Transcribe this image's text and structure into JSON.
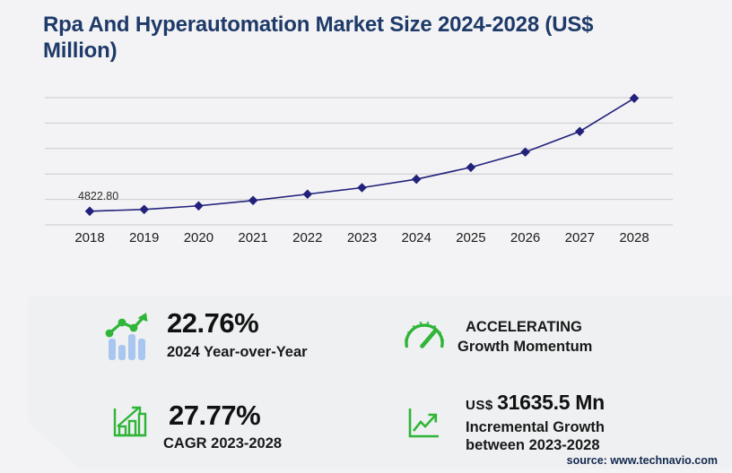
{
  "header": {
    "title": "Rpa And Hyperautomation Market Size 2024-2028 (US$ Million)"
  },
  "chart_data": {
    "type": "line",
    "title": "Rpa And Hyperautomation Market Size 2024-2028 (US$ Million)",
    "x": [
      "2018",
      "2019",
      "2020",
      "2021",
      "2022",
      "2023",
      "2024",
      "2025",
      "2026",
      "2027",
      "2028"
    ],
    "values": [
      4822.8,
      5460,
      6730,
      8630,
      10850,
      13155,
      16150,
      20350,
      25750,
      33040,
      44790
    ],
    "first_point_label": "4822.80",
    "xlabel": "",
    "ylabel": "",
    "ylim": [
      0,
      45000
    ],
    "gridline_count": 6,
    "grid": true,
    "legend": "none",
    "marker": "diamond"
  },
  "stats": [
    {
      "icon": "bar-chart-trend-icon",
      "value": "22.76%",
      "label": "2024 Year-over-Year"
    },
    {
      "icon": "speedometer-icon",
      "line1": "ACCELERATING",
      "line2": "Growth Momentum"
    },
    {
      "icon": "growth-bars-icon",
      "value": "27.77%",
      "label": "CAGR 2023-2028"
    },
    {
      "icon": "trend-axes-icon",
      "currency": "US$",
      "value": "31635.5 Mn",
      "label_line1": "Incremental Growth",
      "label_line2": "between 2023-2028"
    }
  ],
  "footer": {
    "source": "source: www.technavio.com"
  },
  "colors": {
    "title_navy": "#1e3a68",
    "line_indigo": "#22217b",
    "grid_gray": "#cbcbcb",
    "tick_text": "#1b1b1b",
    "green": "#2fb537",
    "light_blue": "#a8c6ef",
    "panel_bg": "#eef0f2",
    "page_bg": "#f3f3f5"
  }
}
